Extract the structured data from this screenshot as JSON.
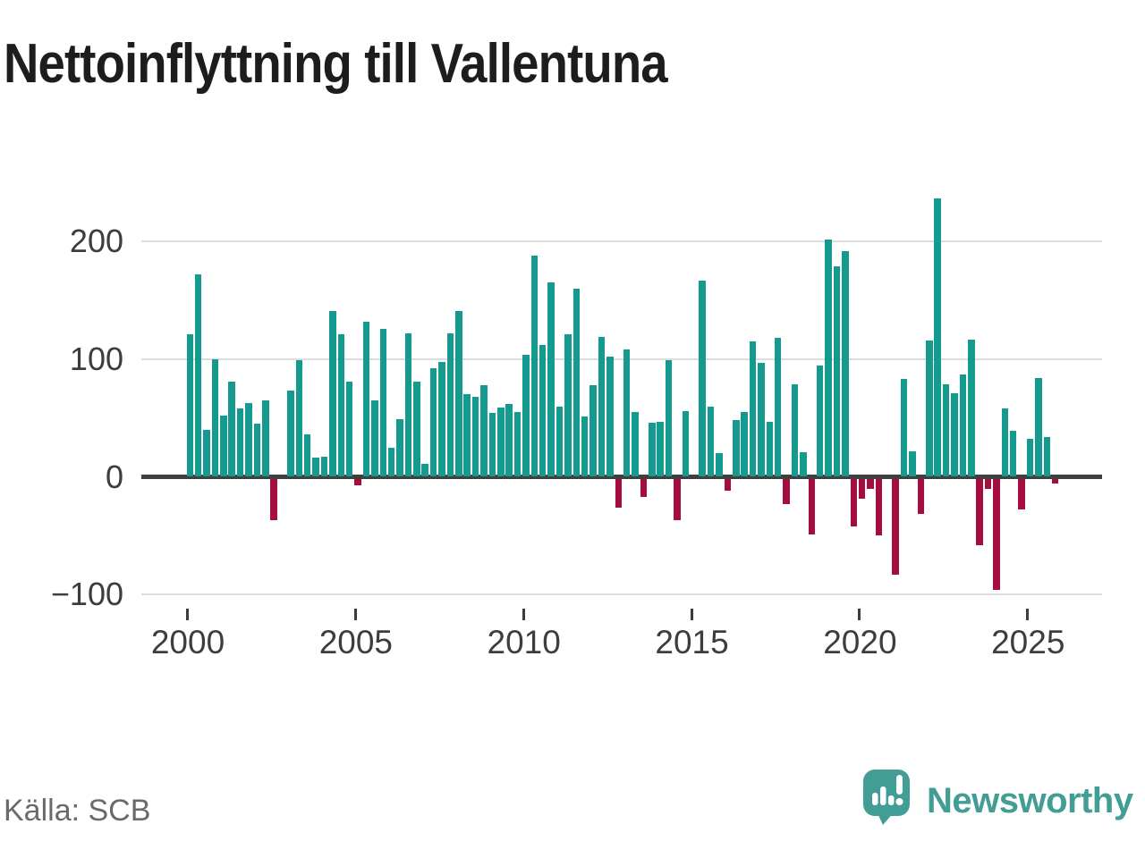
{
  "title": "Nettoinflyttning till Vallentuna",
  "source": "Källa: SCB",
  "branding": {
    "name": "Newsworthy",
    "icon": "newsworthy-speech-bubble-barchart-icon"
  },
  "colors": {
    "positive_bar": "#149a8e",
    "negative_bar": "#a40d3e",
    "axis": "#3f3f3f",
    "gridline": "#dcdcdc",
    "brand_teal": "#429e95",
    "title_text": "#1d1d1d",
    "muted_text": "#6a6a6a"
  },
  "y_axis": {
    "tick_values": [
      200,
      100,
      0,
      -100
    ]
  },
  "x_axis": {
    "tick_years": [
      2000,
      2005,
      2010,
      2015,
      2020,
      2025
    ]
  },
  "chart_data": {
    "type": "bar",
    "title": "Nettoinflyttning till Vallentuna",
    "frequency": "quarterly",
    "period_start": "2000Q1",
    "period_end": "2025Q4",
    "grid": "horizontal",
    "legend": "none",
    "ylim": [
      -120,
      250
    ],
    "yticks": [
      200,
      100,
      0,
      -100
    ],
    "xticks": [
      2000,
      2005,
      2010,
      2015,
      2020,
      2025
    ],
    "values_by_year": [
      {
        "year": 2000,
        "quarters": [
          121,
          172,
          40,
          100
        ]
      },
      {
        "year": 2001,
        "quarters": [
          52,
          81,
          58,
          63
        ]
      },
      {
        "year": 2002,
        "quarters": [
          45,
          65,
          -35,
          0
        ]
      },
      {
        "year": 2003,
        "quarters": [
          73,
          99,
          36,
          16
        ]
      },
      {
        "year": 2004,
        "quarters": [
          17,
          141,
          121,
          81
        ]
      },
      {
        "year": 2005,
        "quarters": [
          -5,
          132,
          65,
          126
        ]
      },
      {
        "year": 2006,
        "quarters": [
          25,
          49,
          122,
          81
        ]
      },
      {
        "year": 2007,
        "quarters": [
          11,
          92,
          98,
          122
        ]
      },
      {
        "year": 2008,
        "quarters": [
          141,
          70,
          68,
          78
        ]
      },
      {
        "year": 2009,
        "quarters": [
          54,
          59,
          62,
          55
        ]
      },
      {
        "year": 2010,
        "quarters": [
          104,
          188,
          112,
          165
        ]
      },
      {
        "year": 2011,
        "quarters": [
          60,
          121,
          160,
          51
        ]
      },
      {
        "year": 2012,
        "quarters": [
          78,
          119,
          102,
          -24
        ]
      },
      {
        "year": 2013,
        "quarters": [
          108,
          55,
          -15,
          46
        ]
      },
      {
        "year": 2014,
        "quarters": [
          47,
          99,
          -35,
          56
        ]
      },
      {
        "year": 2015,
        "quarters": [
          0,
          167,
          60,
          20
        ]
      },
      {
        "year": 2016,
        "quarters": [
          -10,
          48,
          55,
          115
        ]
      },
      {
        "year": 2017,
        "quarters": [
          97,
          47,
          118,
          -21
        ]
      },
      {
        "year": 2018,
        "quarters": [
          79,
          21,
          -47,
          95
        ]
      },
      {
        "year": 2019,
        "quarters": [
          202,
          179,
          192,
          -40
        ]
      },
      {
        "year": 2020,
        "quarters": [
          -17,
          -8,
          -48,
          0
        ]
      },
      {
        "year": 2021,
        "quarters": [
          -81,
          83,
          22,
          -30
        ]
      },
      {
        "year": 2022,
        "quarters": [
          116,
          237,
          79,
          71
        ]
      },
      {
        "year": 2023,
        "quarters": [
          87,
          117,
          -56,
          -8
        ]
      },
      {
        "year": 2024,
        "quarters": [
          -94,
          58,
          39,
          -26
        ]
      },
      {
        "year": 2025,
        "quarters": [
          32,
          84,
          34,
          -4
        ]
      }
    ]
  }
}
